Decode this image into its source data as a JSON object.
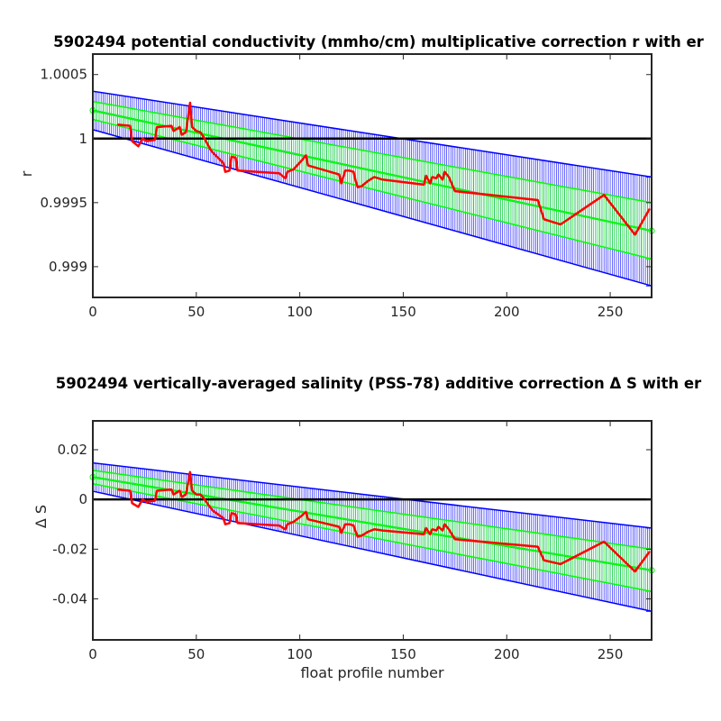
{
  "chart_data": [
    {
      "type": "line",
      "title": "5902494 potential conductivity (mmho/cm) multiplicative correction r with er",
      "xlabel": "",
      "ylabel": "r",
      "xlim": [
        0,
        270
      ],
      "ylim": [
        0.99876,
        1.00066
      ],
      "xticks": [
        "0",
        "50",
        "100",
        "150",
        "200",
        "250"
      ],
      "yticks": [
        "0.999",
        "0.9995",
        "1",
        "1.0005"
      ],
      "grid": false,
      "reference_line": 1,
      "series": [
        {
          "style": "blue-errorbars",
          "x_range": [
            0,
            270
          ],
          "center": [
            1.00022,
            0.99928
          ],
          "upper": [
            1.00037,
            0.9997
          ],
          "lower": [
            1.00007,
            0.99885
          ]
        },
        {
          "style": "green-errorbars",
          "x_range": [
            0,
            270
          ],
          "center": [
            1.00022,
            0.99928
          ],
          "upper": [
            1.00029,
            0.9995
          ],
          "lower": [
            1.00015,
            0.99906
          ]
        },
        {
          "style": "red-line",
          "x": [
            12,
            18,
            19,
            22,
            24,
            26,
            30,
            31,
            38,
            39,
            42,
            43,
            45,
            47,
            48,
            50,
            52,
            54,
            57,
            58,
            63,
            64,
            66,
            67,
            69,
            70,
            90,
            93,
            94,
            97,
            101,
            103,
            104,
            119,
            120,
            122,
            123,
            124,
            126,
            127,
            128,
            130,
            133,
            136,
            140,
            160,
            161,
            163,
            164,
            166,
            167,
            169,
            170,
            172,
            175,
            215,
            218,
            226,
            247,
            262,
            269
          ],
          "y": [
            1.00011,
            1.0001,
            0.99998,
            0.99994,
            1.0,
            0.99998,
            0.99999,
            1.00009,
            1.0001,
            1.00006,
            1.00009,
            1.00003,
            1.00005,
            1.00028,
            1.00009,
            1.00006,
            1.00005,
            1.0,
            0.99991,
            0.99989,
            0.99981,
            0.99974,
            0.99975,
            0.99986,
            0.99985,
            0.99975,
            0.99973,
            0.99969,
            0.99974,
            0.99976,
            0.99983,
            0.99987,
            0.99979,
            0.99972,
            0.99965,
            0.99975,
            0.99975,
            0.99975,
            0.99974,
            0.99967,
            0.99962,
            0.99963,
            0.99967,
            0.9997,
            0.99968,
            0.99964,
            0.99971,
            0.99965,
            0.9997,
            0.99969,
            0.99972,
            0.99968,
            0.99974,
            0.9997,
            0.99959,
            0.99952,
            0.99937,
            0.99933,
            0.99956,
            0.99925,
            0.99945
          ]
        }
      ]
    },
    {
      "type": "line",
      "title": "5902494 vertically-averaged salinity (PSS-78) additive correction Δ S with er",
      "xlabel": "float profile number",
      "ylabel": "Δ S",
      "xlim": [
        0,
        270
      ],
      "ylim": [
        -0.0565,
        0.0316
      ],
      "xticks": [
        "0",
        "50",
        "100",
        "150",
        "200",
        "250"
      ],
      "yticks": [
        "-0.04",
        "-0.02",
        "0",
        "0.02"
      ],
      "grid": false,
      "reference_line": 0,
      "series": [
        {
          "style": "blue-errorbars",
          "x_range": [
            0,
            270
          ],
          "center": [
            0.009,
            -0.0285
          ],
          "upper": [
            0.0147,
            -0.0115
          ],
          "lower": [
            0.0033,
            -0.045
          ]
        },
        {
          "style": "green-errorbars",
          "x_range": [
            0,
            270
          ],
          "center": [
            0.009,
            -0.0285
          ],
          "upper": [
            0.0117,
            -0.02
          ],
          "lower": [
            0.0063,
            -0.037
          ]
        },
        {
          "style": "red-line",
          "x": [
            12,
            18,
            19,
            22,
            24,
            26,
            30,
            31,
            38,
            39,
            42,
            43,
            45,
            47,
            48,
            50,
            52,
            54,
            57,
            58,
            63,
            64,
            66,
            67,
            69,
            70,
            90,
            93,
            94,
            97,
            101,
            103,
            104,
            119,
            120,
            122,
            123,
            124,
            126,
            127,
            128,
            130,
            133,
            136,
            140,
            160,
            161,
            163,
            164,
            166,
            167,
            169,
            170,
            172,
            175,
            215,
            218,
            226,
            247,
            262,
            269
          ],
          "y": [
            0.004,
            0.0035,
            -0.0015,
            -0.003,
            0.0,
            -0.001,
            -0.0005,
            0.0035,
            0.004,
            0.002,
            0.0035,
            0.001,
            0.002,
            0.011,
            0.0035,
            0.002,
            0.002,
            0.0,
            -0.0035,
            -0.0045,
            -0.0075,
            -0.01,
            -0.0095,
            -0.0055,
            -0.006,
            -0.0095,
            -0.0105,
            -0.012,
            -0.01,
            -0.009,
            -0.0065,
            -0.005,
            -0.008,
            -0.011,
            -0.0135,
            -0.01,
            -0.01,
            -0.01,
            -0.0105,
            -0.013,
            -0.015,
            -0.0145,
            -0.013,
            -0.012,
            -0.0125,
            -0.014,
            -0.0115,
            -0.014,
            -0.012,
            -0.0125,
            -0.011,
            -0.0125,
            -0.01,
            -0.012,
            -0.016,
            -0.019,
            -0.0245,
            -0.026,
            -0.017,
            -0.029,
            -0.021
          ]
        }
      ]
    }
  ]
}
